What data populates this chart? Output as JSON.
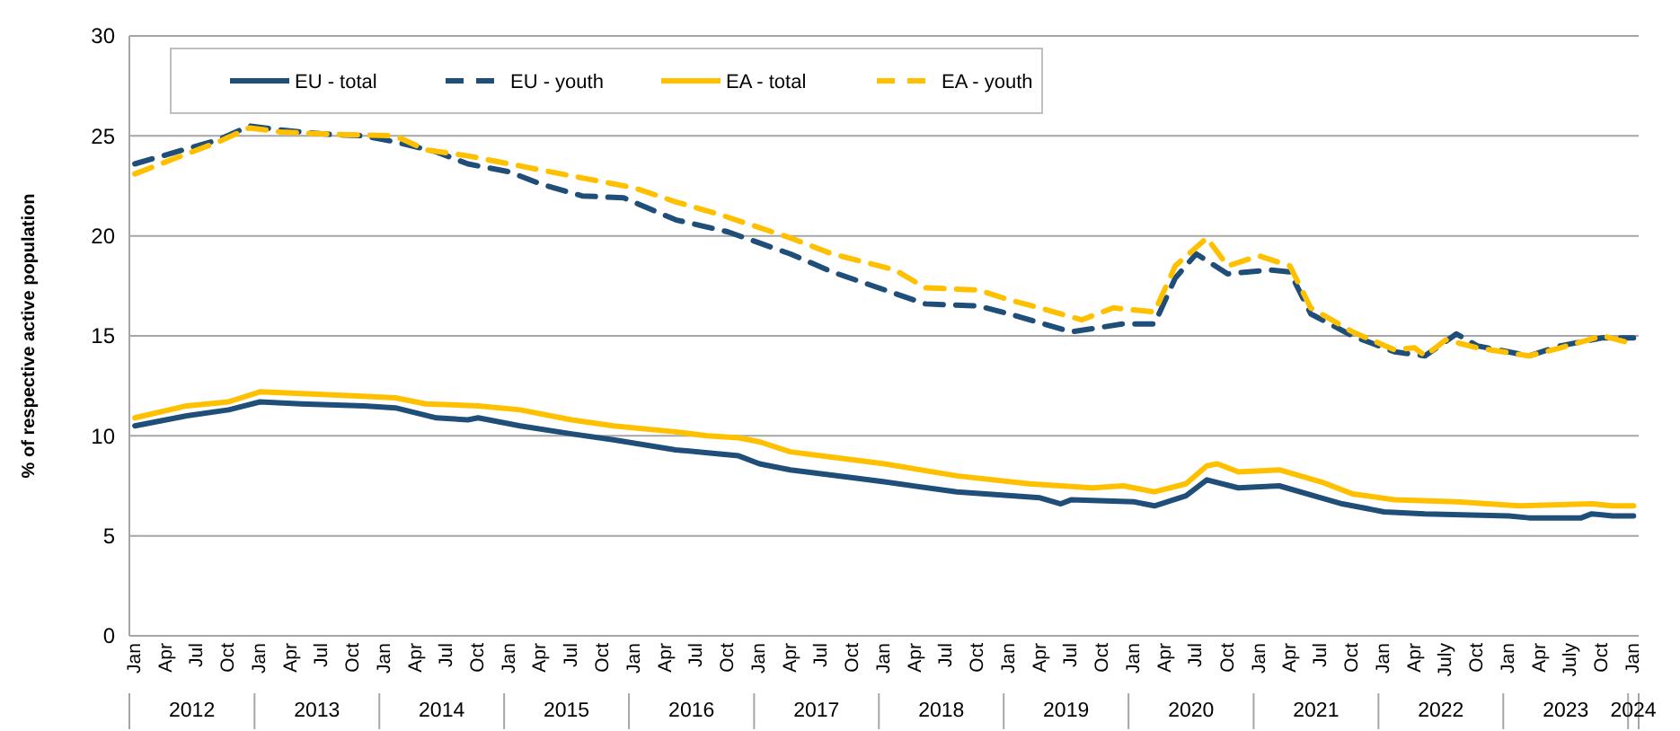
{
  "chart_data": {
    "type": "line",
    "ylabel": "% of respective active population",
    "xlim": [
      "2011-12-16",
      "2024-01-16"
    ],
    "ylim": [
      0,
      30
    ],
    "yticks": [
      0,
      5,
      10,
      15,
      20,
      25,
      30
    ],
    "grid": "y",
    "legend": "top",
    "marker": "none",
    "xticks": [
      {
        "value": "2012-01",
        "label": "Jan"
      },
      {
        "value": "2012-04",
        "label": "Apr"
      },
      {
        "value": "2012-07",
        "label": "Jul"
      },
      {
        "value": "2012-10",
        "label": "Oct"
      },
      {
        "value": "2013-01",
        "label": "Jan"
      },
      {
        "value": "2013-04",
        "label": "Apr"
      },
      {
        "value": "2013-07",
        "label": "Jul"
      },
      {
        "value": "2013-10",
        "label": "Oct"
      },
      {
        "value": "2014-01",
        "label": "Jan"
      },
      {
        "value": "2014-04",
        "label": "Apr"
      },
      {
        "value": "2014-07",
        "label": "Jul"
      },
      {
        "value": "2014-10",
        "label": "Oct"
      },
      {
        "value": "2015-01",
        "label": "Jan"
      },
      {
        "value": "2015-04",
        "label": "Apr"
      },
      {
        "value": "2015-07",
        "label": "Jul"
      },
      {
        "value": "2015-10",
        "label": "Oct"
      },
      {
        "value": "2016-01",
        "label": "Jan"
      },
      {
        "value": "2016-04",
        "label": "Apr"
      },
      {
        "value": "2016-07",
        "label": "Jul"
      },
      {
        "value": "2016-10",
        "label": "Oct"
      },
      {
        "value": "2017-01",
        "label": "Jan"
      },
      {
        "value": "2017-04",
        "label": "Apr"
      },
      {
        "value": "2017-07",
        "label": "Jul"
      },
      {
        "value": "2017-10",
        "label": "Oct"
      },
      {
        "value": "2018-01",
        "label": "Jan"
      },
      {
        "value": "2018-04",
        "label": "Apr"
      },
      {
        "value": "2018-07",
        "label": "Jul"
      },
      {
        "value": "2018-10",
        "label": "Oct"
      },
      {
        "value": "2019-01",
        "label": "Jan"
      },
      {
        "value": "2019-04",
        "label": "Apr"
      },
      {
        "value": "2019-07",
        "label": "Jul"
      },
      {
        "value": "2019-10",
        "label": "Oct"
      },
      {
        "value": "2020-01",
        "label": "Jan"
      },
      {
        "value": "2020-04",
        "label": "Apr"
      },
      {
        "value": "2020-07",
        "label": "Jul"
      },
      {
        "value": "2020-10",
        "label": "Oct"
      },
      {
        "value": "2021-01",
        "label": "Jan"
      },
      {
        "value": "2021-04",
        "label": "Apr"
      },
      {
        "value": "2021-07",
        "label": "Jul"
      },
      {
        "value": "2021-10",
        "label": "Oct"
      },
      {
        "value": "2022-01",
        "label": "Jan"
      },
      {
        "value": "2022-04",
        "label": "Apr"
      },
      {
        "value": "2022-07",
        "label": "July"
      },
      {
        "value": "2022-10",
        "label": "Oct"
      },
      {
        "value": "2023-01",
        "label": "Jan"
      },
      {
        "value": "2023-04",
        "label": "Apr"
      },
      {
        "value": "2023-07",
        "label": "July"
      },
      {
        "value": "2023-10",
        "label": "Oct"
      },
      {
        "value": "2024-01",
        "label": "Jan"
      }
    ],
    "annotations": [
      "2012",
      "2013",
      "2014",
      "2015",
      "2016",
      "2017",
      "2018",
      "2019",
      "2020",
      "2021",
      "2022",
      "2023",
      "2024"
    ],
    "series": [
      {
        "name": "EU - total",
        "color": "#1f4e79",
        "line_style": "solid",
        "x": [
          "2012-01",
          "2012-06",
          "2012-10",
          "2013-01",
          "2013-05",
          "2013-11",
          "2014-02",
          "2014-06",
          "2014-09",
          "2014-10",
          "2015-02",
          "2015-07",
          "2015-11",
          "2016-05",
          "2016-11",
          "2017-01",
          "2017-04",
          "2017-10",
          "2018-01",
          "2018-08",
          "2019-04",
          "2019-06",
          "2019-07",
          "2020-01",
          "2020-03",
          "2020-06",
          "2020-08",
          "2020-11",
          "2021-03",
          "2021-07",
          "2021-09",
          "2022-01",
          "2022-05",
          "2023-01",
          "2023-03",
          "2023-08",
          "2023-09",
          "2023-11",
          "2024-01"
        ],
        "values": [
          10.5,
          11.0,
          11.3,
          11.7,
          11.6,
          11.5,
          11.4,
          10.9,
          10.8,
          10.9,
          10.5,
          10.1,
          9.8,
          9.3,
          9.0,
          8.6,
          8.3,
          7.9,
          7.7,
          7.2,
          6.9,
          6.6,
          6.8,
          6.7,
          6.5,
          7.0,
          7.8,
          7.4,
          7.5,
          6.9,
          6.6,
          6.2,
          6.1,
          6.0,
          5.9,
          5.9,
          6.1,
          6.0,
          6.0
        ]
      },
      {
        "name": "EU - youth",
        "color": "#1f4e79",
        "line_style": "dashed",
        "x": [
          "2012-01",
          "2012-05",
          "2012-09",
          "2012-12",
          "2013-03",
          "2013-07",
          "2013-11",
          "2014-02",
          "2014-06",
          "2014-09",
          "2015-01",
          "2015-04",
          "2015-08",
          "2015-12",
          "2016-05",
          "2016-10",
          "2017-04",
          "2017-08",
          "2018-05",
          "2018-10",
          "2019-01",
          "2019-07",
          "2019-12",
          "2020-03",
          "2020-05",
          "2020-07",
          "2020-10",
          "2021-02",
          "2021-04",
          "2021-06",
          "2021-10",
          "2022-02",
          "2022-05",
          "2022-08",
          "2022-10",
          "2023-03",
          "2023-06",
          "2023-10",
          "2024-01"
        ],
        "values": [
          23.6,
          24.2,
          24.8,
          25.5,
          25.3,
          25.1,
          25.0,
          24.7,
          24.2,
          23.6,
          23.2,
          22.6,
          22.0,
          21.9,
          20.8,
          20.2,
          19.1,
          18.2,
          16.6,
          16.5,
          16.1,
          15.2,
          15.6,
          15.6,
          17.9,
          19.1,
          18.1,
          18.3,
          18.2,
          16.1,
          15.0,
          14.2,
          14.0,
          15.1,
          14.5,
          14.0,
          14.5,
          14.9,
          14.9
        ]
      },
      {
        "name": "EA - total",
        "color": "#ffc000",
        "line_style": "solid",
        "x": [
          "2012-01",
          "2012-06",
          "2012-10",
          "2013-01",
          "2013-10",
          "2014-02",
          "2014-05",
          "2014-10",
          "2015-02",
          "2015-07",
          "2015-11",
          "2016-05",
          "2016-08",
          "2016-11",
          "2017-01",
          "2017-04",
          "2017-10",
          "2018-01",
          "2018-08",
          "2019-03",
          "2019-09",
          "2019-12",
          "2020-03",
          "2020-06",
          "2020-08",
          "2020-09",
          "2020-11",
          "2021-03",
          "2021-07",
          "2021-10",
          "2022-02",
          "2022-08",
          "2023-02",
          "2023-09",
          "2023-11",
          "2024-01"
        ],
        "values": [
          10.9,
          11.5,
          11.7,
          12.2,
          12.0,
          11.9,
          11.6,
          11.5,
          11.3,
          10.8,
          10.5,
          10.2,
          10.0,
          9.9,
          9.7,
          9.2,
          8.8,
          8.6,
          8.0,
          7.6,
          7.4,
          7.5,
          7.2,
          7.6,
          8.5,
          8.6,
          8.2,
          8.3,
          7.7,
          7.1,
          6.8,
          6.7,
          6.5,
          6.6,
          6.5,
          6.5
        ]
      },
      {
        "name": "EA - youth",
        "color": "#ffc000",
        "line_style": "dashed",
        "x": [
          "2012-01",
          "2012-05",
          "2012-09",
          "2012-12",
          "2013-03",
          "2013-07",
          "2014-02",
          "2014-05",
          "2014-09",
          "2015-01",
          "2015-04",
          "2015-08",
          "2015-11",
          "2016-01",
          "2016-05",
          "2016-09",
          "2017-04",
          "2017-08",
          "2017-11",
          "2018-02",
          "2018-05",
          "2018-10",
          "2019-01",
          "2019-04",
          "2019-08",
          "2019-11",
          "2020-03",
          "2020-05",
          "2020-08",
          "2020-10",
          "2021-01",
          "2021-04",
          "2021-06",
          "2021-10",
          "2022-02",
          "2022-04",
          "2022-05",
          "2022-07",
          "2022-10",
          "2023-03",
          "2023-06",
          "2023-10",
          "2024-01"
        ],
        "values": [
          23.1,
          23.9,
          24.7,
          25.4,
          25.2,
          25.1,
          25.0,
          24.3,
          24.0,
          23.6,
          23.3,
          22.9,
          22.6,
          22.4,
          21.7,
          21.1,
          19.9,
          19.1,
          18.7,
          18.3,
          17.4,
          17.3,
          16.8,
          16.4,
          15.8,
          16.4,
          16.2,
          18.5,
          19.9,
          18.5,
          19.0,
          18.5,
          16.4,
          15.2,
          14.3,
          14.4,
          14.0,
          14.8,
          14.4,
          14.0,
          14.4,
          15.0,
          14.6
        ]
      }
    ]
  }
}
